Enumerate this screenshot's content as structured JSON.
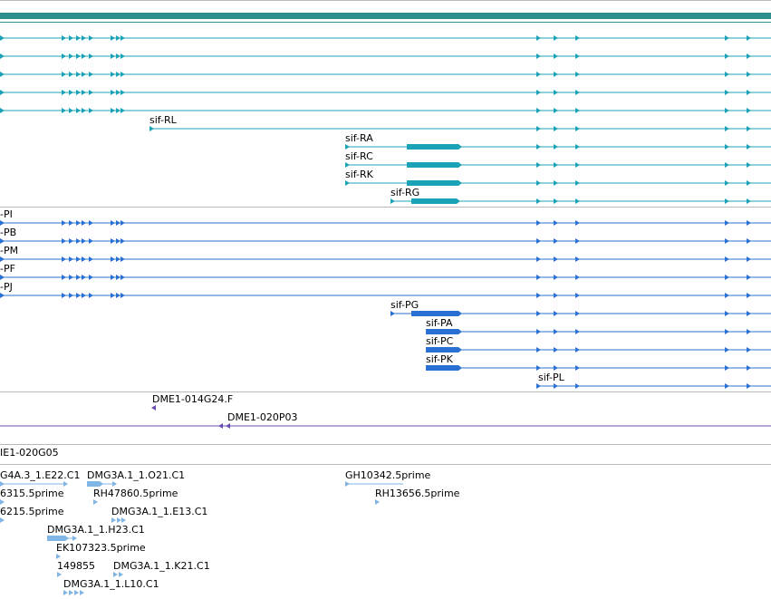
{
  "colors": {
    "scale_bar": "#2f8f8f",
    "track_a": "#1aa3b8",
    "track_b": "#2a6fd2",
    "track_c": "#6a4cb0",
    "track_d": "#7fb6e6",
    "separator": "#b8b8b8"
  },
  "track_a_labels": {
    "sif_rl": "sif-RL",
    "sif_ra": "sif-RA",
    "sif_rc": "sif-RC",
    "sif_rk": "sif-RK",
    "sif_rg": "sif-RG"
  },
  "track_b_labels": {
    "pi": "-PI",
    "pb": "-PB",
    "pm": "-PM",
    "pf": "-PF",
    "pj": "-PJ",
    "sif_pg": "sif-PG",
    "sif_pa": "sif-PA",
    "sif_pc": "sif-PC",
    "sif_pk": "sif-PK",
    "sif_pl": "sif-PL"
  },
  "track_c_labels": {
    "dme1_014g24_f": "DME1-014G24.F",
    "dme1_020p03": "DME1-020P03"
  },
  "track_ie_label": "IE1-020G05",
  "track_d_labels": {
    "g4a3_e22": "G4A.3_1.E22.C1",
    "dmg3a_o21": "DMG3A.1_1.O21.C1",
    "gh10342": "GH10342.5prime",
    "p6315": "6315.5prime",
    "rh47860": "RH47860.5prime",
    "rh13656": "RH13656.5prime",
    "p6215": "6215.5prime",
    "dmg3a_e13": "DMG3A.1_1.E13.C1",
    "dmg3a_h23": "DMG3A.1_1.H23.C1",
    "ek107323": "EK107323.5prime",
    "n149855": "149855",
    "dmg3a_k21": "DMG3A.1_1.K21.C1",
    "dmg3a_l10": "DMG3A.1_1.L10.C1"
  }
}
